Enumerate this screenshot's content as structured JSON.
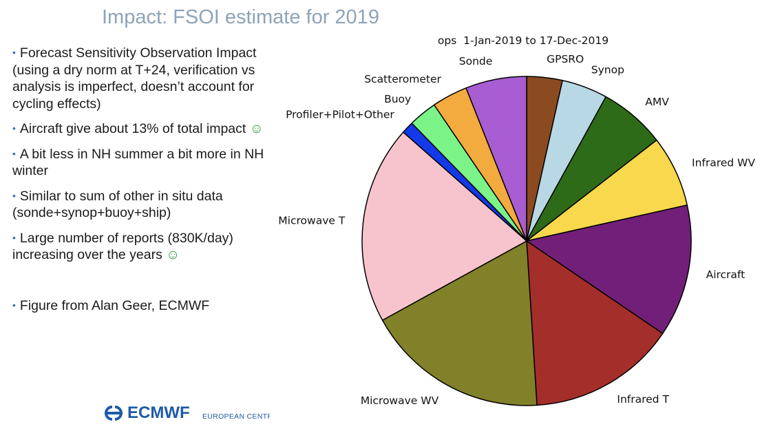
{
  "slide": {
    "title": "Impact: FSOI estimate for 2019",
    "bullets": [
      {
        "text": "Forecast Sensitivity Observation Impact (using a dry norm at T+24, verification vs analysis is imperfect, doesn’t account for cycling effects)",
        "smiley": ""
      },
      {
        "text": "Aircraft give about 13% of total impact",
        "smiley": "☺"
      },
      {
        "text": "A bit less in NH summer a bit more in NH winter",
        "smiley": ""
      },
      {
        "text": "Similar to sum of other in situ data (sonde+synop+buoy+ship)",
        "smiley": ""
      },
      {
        "text": "Large number of reports (830K/day) increasing over the years",
        "smiley": "☺"
      },
      {
        "text": "Figure from Alan Geer, ECMWF",
        "smiley": ""
      }
    ],
    "bullet_marker": "•"
  },
  "footer": {
    "logo_text": "ECMWF",
    "logo_subtext": "EUROPEAN CENTRE FOR MEDIUM-RANGE WEATHER FORECASTS",
    "logo_color": "#1e5aa8"
  },
  "chart_data": {
    "type": "pie",
    "title": "ops  1-Jan-2019 to 17-Dec-2019",
    "start_angle_deg": 90,
    "direction": "clockwise",
    "slices": [
      {
        "label": "GPSRO",
        "value": 3.5,
        "color": "#8b4a20"
      },
      {
        "label": "Synop",
        "value": 4.5,
        "color": "#b8d8e5"
      },
      {
        "label": "AMV",
        "value": 6.5,
        "color": "#2e6b18"
      },
      {
        "label": "Infrared WV",
        "value": 7.0,
        "color": "#f8d84c"
      },
      {
        "label": "Aircraft",
        "value": 13.0,
        "color": "#711f78"
      },
      {
        "label": "Infrared T",
        "value": 14.5,
        "color": "#a42e29"
      },
      {
        "label": "Microwave WV",
        "value": 18.0,
        "color": "#818129"
      },
      {
        "label": "Microwave T",
        "value": 19.5,
        "color": "#f7c4cd"
      },
      {
        "label": "Profiler+Pilot+Other",
        "value": 1.2,
        "color": "#1439e8"
      },
      {
        "label": "Buoy",
        "value": 2.8,
        "color": "#7bf387"
      },
      {
        "label": "Scatterometer",
        "value": 3.5,
        "color": "#f3aa3e"
      },
      {
        "label": "Sonde",
        "value": 6.0,
        "color": "#a95dd2"
      }
    ]
  }
}
